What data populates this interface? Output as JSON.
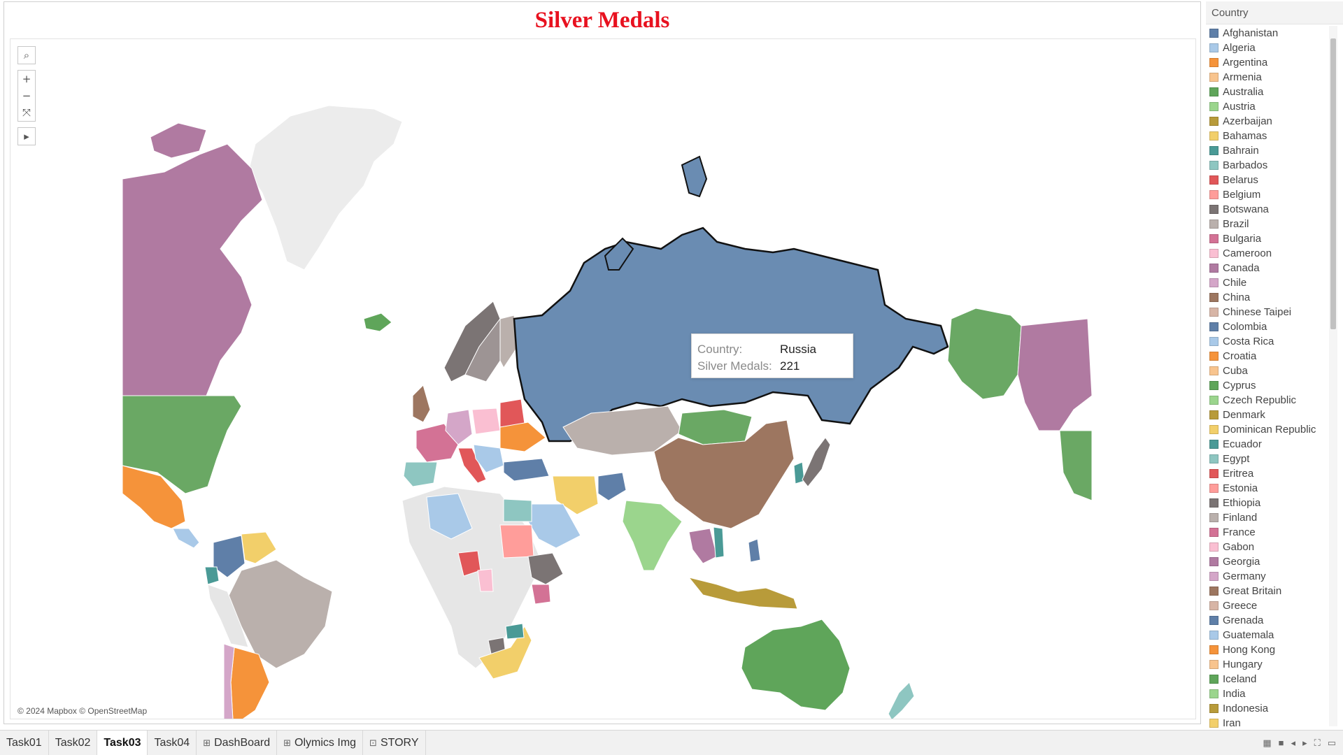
{
  "title": "Silver Medals",
  "map": {
    "attribution": "© 2024 Mapbox © OpenStreetMap",
    "highlighted_country": "Russia",
    "tools": [
      {
        "icon": "search-icon",
        "glyph": "⌕"
      },
      {
        "icon": "zoom-in-icon",
        "glyph": "+"
      },
      {
        "icon": "zoom-out-icon",
        "glyph": "−"
      },
      {
        "icon": "reset-map-icon",
        "glyph": "⤧"
      },
      {
        "icon": "expand-toolbar-icon",
        "glyph": "▸"
      }
    ]
  },
  "tooltip": {
    "country_label": "Country:",
    "country_value": "Russia",
    "medals_label": "Silver Medals:",
    "medals_value": "221"
  },
  "legend": {
    "title": "Country",
    "items": [
      {
        "name": "Afghanistan",
        "color": "#5f7fa8"
      },
      {
        "name": "Algeria",
        "color": "#a9c9e8"
      },
      {
        "name": "Argentina",
        "color": "#f5933a"
      },
      {
        "name": "Armenia",
        "color": "#f8c48e"
      },
      {
        "name": "Australia",
        "color": "#5fa55a"
      },
      {
        "name": "Austria",
        "color": "#9bd58d"
      },
      {
        "name": "Azerbaijan",
        "color": "#b89b3a"
      },
      {
        "name": "Bahamas",
        "color": "#f2cf6a"
      },
      {
        "name": "Bahrain",
        "color": "#4a9a96"
      },
      {
        "name": "Barbados",
        "color": "#8ec6c1"
      },
      {
        "name": "Belarus",
        "color": "#e15759"
      },
      {
        "name": "Belgium",
        "color": "#ff9d9a"
      },
      {
        "name": "Botswana",
        "color": "#7b7474"
      },
      {
        "name": "Brazil",
        "color": "#bab0ac"
      },
      {
        "name": "Bulgaria",
        "color": "#d37295"
      },
      {
        "name": "Cameroon",
        "color": "#fabfd2"
      },
      {
        "name": "Canada",
        "color": "#b07aa1"
      },
      {
        "name": "Chile",
        "color": "#d4a6c8"
      },
      {
        "name": "China",
        "color": "#9d7660"
      },
      {
        "name": "Chinese Taipei",
        "color": "#d7b5a6"
      },
      {
        "name": "Colombia",
        "color": "#5f7fa8"
      },
      {
        "name": "Costa Rica",
        "color": "#a9c9e8"
      },
      {
        "name": "Croatia",
        "color": "#f5933a"
      },
      {
        "name": "Cuba",
        "color": "#f8c48e"
      },
      {
        "name": "Cyprus",
        "color": "#5fa55a"
      },
      {
        "name": "Czech Republic",
        "color": "#9bd58d"
      },
      {
        "name": "Denmark",
        "color": "#b89b3a"
      },
      {
        "name": "Dominican Republic",
        "color": "#f2cf6a"
      },
      {
        "name": "Ecuador",
        "color": "#4a9a96"
      },
      {
        "name": "Egypt",
        "color": "#8ec6c1"
      },
      {
        "name": "Eritrea",
        "color": "#e15759"
      },
      {
        "name": "Estonia",
        "color": "#ff9d9a"
      },
      {
        "name": "Ethiopia",
        "color": "#7b7474"
      },
      {
        "name": "Finland",
        "color": "#bab0ac"
      },
      {
        "name": "France",
        "color": "#d37295"
      },
      {
        "name": "Gabon",
        "color": "#fabfd2"
      },
      {
        "name": "Georgia",
        "color": "#b07aa1"
      },
      {
        "name": "Germany",
        "color": "#d4a6c8"
      },
      {
        "name": "Great Britain",
        "color": "#9d7660"
      },
      {
        "name": "Greece",
        "color": "#d7b5a6"
      },
      {
        "name": "Grenada",
        "color": "#5f7fa8"
      },
      {
        "name": "Guatemala",
        "color": "#a9c9e8"
      },
      {
        "name": "Hong Kong",
        "color": "#f5933a"
      },
      {
        "name": "Hungary",
        "color": "#f8c48e"
      },
      {
        "name": "Iceland",
        "color": "#5fa55a"
      },
      {
        "name": "India",
        "color": "#9bd58d"
      },
      {
        "name": "Indonesia",
        "color": "#b89b3a"
      },
      {
        "name": "Iran",
        "color": "#f2cf6a"
      }
    ]
  },
  "tabs": [
    {
      "label": "Task01",
      "icon": "",
      "active": false
    },
    {
      "label": "Task02",
      "icon": "",
      "active": false
    },
    {
      "label": "Task03",
      "icon": "",
      "active": true
    },
    {
      "label": "Task04",
      "icon": "",
      "active": false
    },
    {
      "label": "DashBoard",
      "icon": "⊞",
      "active": false
    },
    {
      "label": "Olymics Img",
      "icon": "⊞",
      "active": false
    },
    {
      "label": "STORY",
      "icon": "⊡",
      "active": false
    }
  ],
  "status_icons": [
    "grid-view-icon",
    "filmstrip-icon",
    "previous-icon",
    "next-icon",
    "fullscreen-icon",
    "presentation-icon"
  ],
  "colors": {
    "title": "#e8111f",
    "russia": "#6a8cb2",
    "unmatched_land": "#e6e6e6",
    "greenland": "#ececec"
  }
}
